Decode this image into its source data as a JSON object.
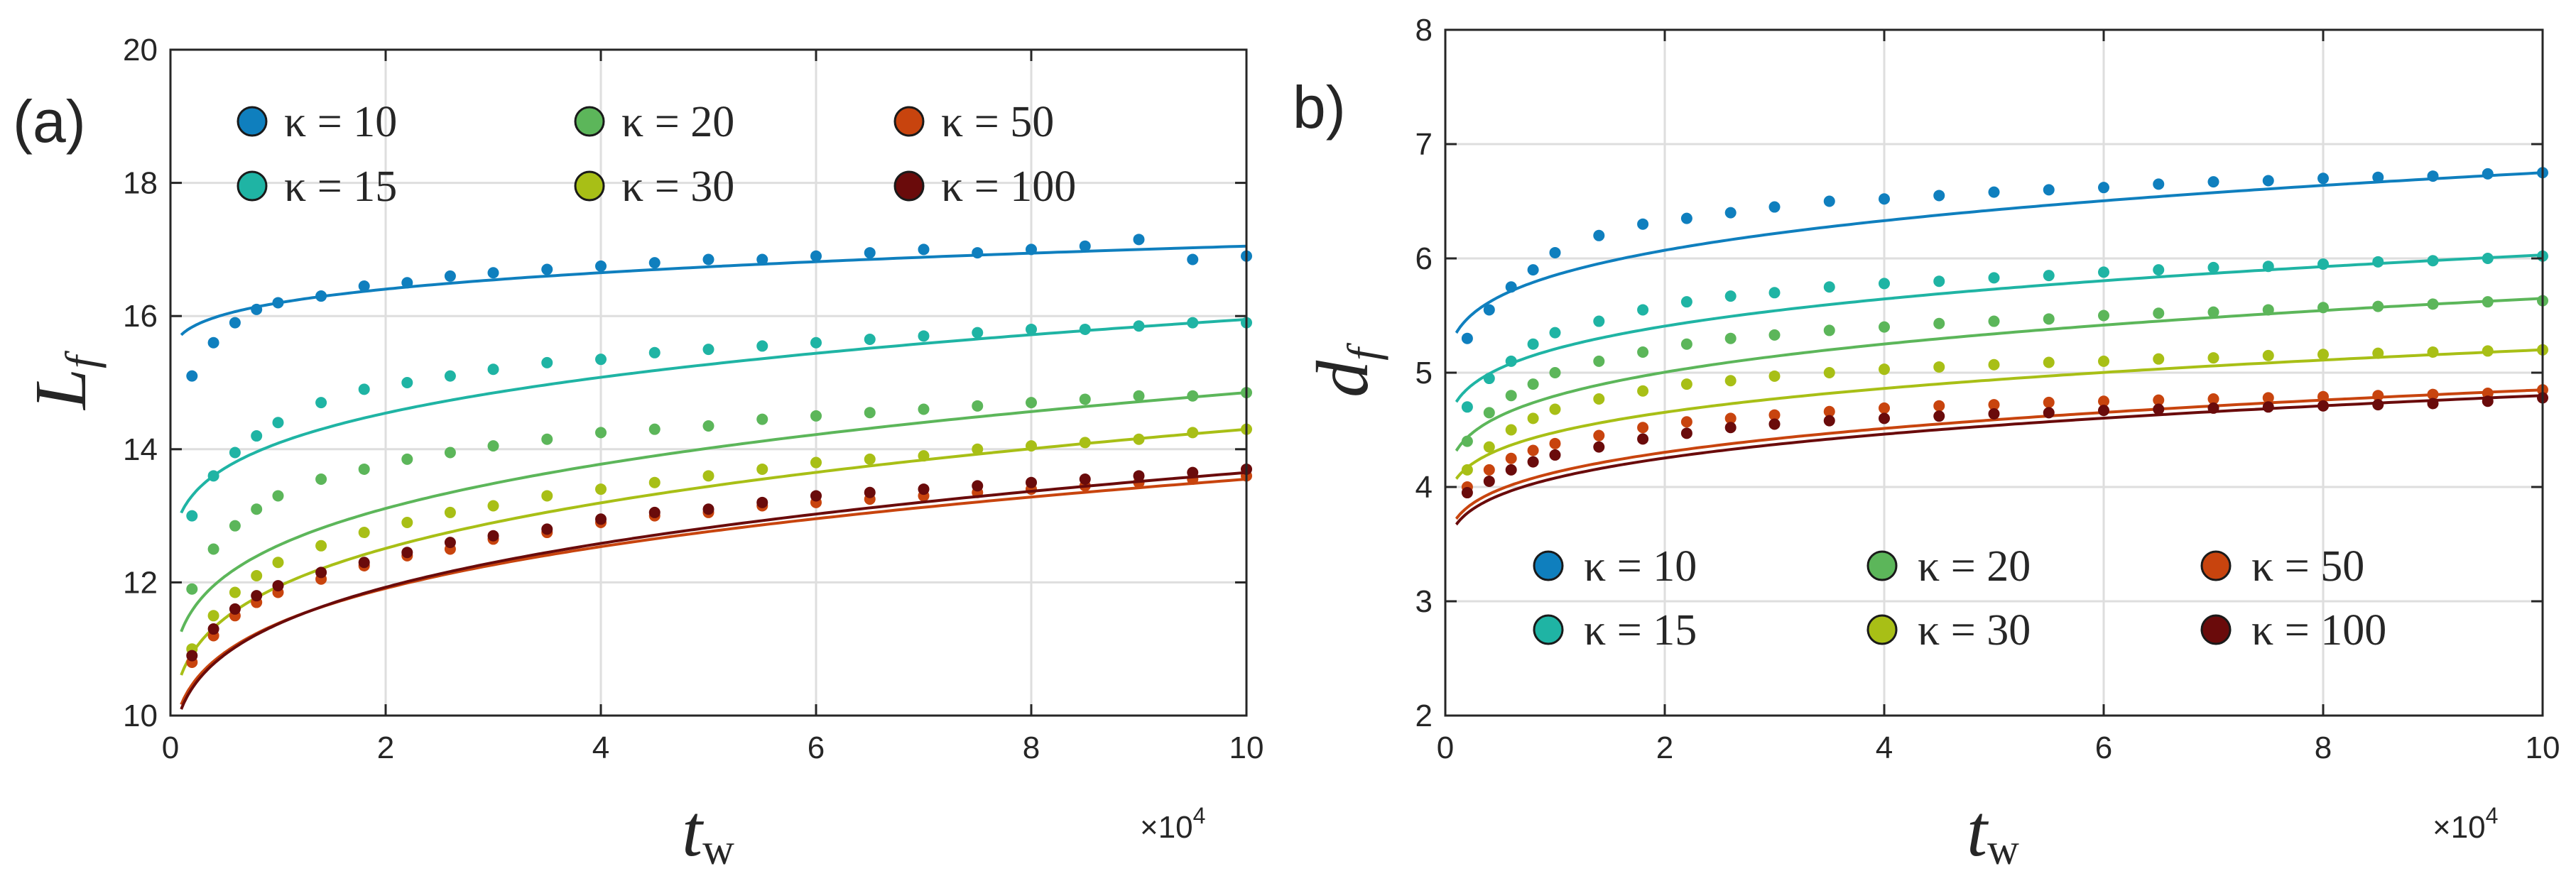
{
  "chart_data": [
    {
      "type": "scatter",
      "panel_label": "(a)",
      "xlabel": "t",
      "xlabel_sub": "w",
      "ylabel": "L",
      "ylabel_sub": "f",
      "x_exponent_prefix": "×10",
      "x_exponent_power": "4",
      "xlim": [
        0,
        100000
      ],
      "ylim": [
        10,
        20
      ],
      "xticks": [
        0,
        20000,
        40000,
        60000,
        80000,
        100000
      ],
      "xtick_labels": [
        "0",
        "2",
        "4",
        "6",
        "8",
        "10"
      ],
      "yticks": [
        10,
        12,
        14,
        16,
        18,
        20
      ],
      "ytick_labels": [
        "10",
        "12",
        "14",
        "16",
        "18",
        "20"
      ],
      "grid": true,
      "legend_placement": "top",
      "x": [
        2000,
        4000,
        6000,
        8000,
        10000,
        14000,
        18000,
        22000,
        26000,
        30000,
        35000,
        40000,
        45000,
        50000,
        55000,
        60000,
        65000,
        70000,
        75000,
        80000,
        85000,
        90000,
        95000,
        100000
      ],
      "series": [
        {
          "name": "κ = 10",
          "color": "#0f7fbe",
          "fit_base": 15.1,
          "fit_scale": 1.95,
          "values": [
            15.1,
            15.6,
            15.9,
            16.1,
            16.2,
            16.3,
            16.45,
            16.5,
            16.6,
            16.65,
            16.7,
            16.75,
            16.8,
            16.85,
            16.85,
            16.9,
            16.95,
            17.0,
            16.95,
            17.0,
            17.05,
            17.15,
            16.85,
            16.9
          ]
        },
        {
          "name": "κ = 15",
          "color": "#1fb4a4",
          "fit_base": 11.7,
          "fit_scale": 4.25,
          "values": [
            13.0,
            13.6,
            13.95,
            14.2,
            14.4,
            14.7,
            14.9,
            15.0,
            15.1,
            15.2,
            15.3,
            15.35,
            15.45,
            15.5,
            15.55,
            15.6,
            15.65,
            15.7,
            15.75,
            15.8,
            15.8,
            15.85,
            15.9,
            15.9
          ]
        },
        {
          "name": "κ = 20",
          "color": "#5cb65a",
          "fit_base": 9.6,
          "fit_scale": 5.25,
          "values": [
            11.9,
            12.5,
            12.85,
            13.1,
            13.3,
            13.55,
            13.7,
            13.85,
            13.95,
            14.05,
            14.15,
            14.25,
            14.3,
            14.35,
            14.45,
            14.5,
            14.55,
            14.6,
            14.65,
            14.7,
            14.75,
            14.8,
            14.8,
            14.85
          ]
        },
        {
          "name": "κ = 30",
          "color": "#a8bf16",
          "fit_base": 8.9,
          "fit_scale": 5.4,
          "values": [
            11.0,
            11.5,
            11.85,
            12.1,
            12.3,
            12.55,
            12.75,
            12.9,
            13.05,
            13.15,
            13.3,
            13.4,
            13.5,
            13.6,
            13.7,
            13.8,
            13.85,
            13.9,
            14.0,
            14.05,
            14.1,
            14.15,
            14.25,
            14.3
          ]
        },
        {
          "name": "κ = 50",
          "color": "#c8440e",
          "fit_base": 8.6,
          "fit_scale": 4.95,
          "values": [
            10.8,
            11.2,
            11.5,
            11.7,
            11.85,
            12.05,
            12.25,
            12.4,
            12.5,
            12.65,
            12.75,
            12.9,
            13.0,
            13.05,
            13.15,
            13.2,
            13.25,
            13.3,
            13.35,
            13.4,
            13.45,
            13.5,
            13.55,
            13.6
          ]
        },
        {
          "name": "κ = 100",
          "color": "#6a0b0b",
          "fit_base": 8.45,
          "fit_scale": 5.2,
          "values": [
            10.9,
            11.3,
            11.6,
            11.8,
            11.95,
            12.15,
            12.3,
            12.45,
            12.6,
            12.7,
            12.8,
            12.95,
            13.05,
            13.1,
            13.2,
            13.3,
            13.35,
            13.4,
            13.45,
            13.5,
            13.55,
            13.6,
            13.65,
            13.7
          ]
        }
      ]
    },
    {
      "type": "scatter",
      "panel_label": "b)",
      "xlabel": "t",
      "xlabel_sub": "w",
      "ylabel": "d",
      "ylabel_sub": "f",
      "x_exponent_prefix": "×10",
      "x_exponent_power": "4",
      "xlim": [
        0,
        100000
      ],
      "ylim": [
        2,
        8
      ],
      "xticks": [
        0,
        20000,
        40000,
        60000,
        80000,
        100000
      ],
      "xtick_labels": [
        "0",
        "2",
        "4",
        "6",
        "8",
        "10"
      ],
      "yticks": [
        2,
        3,
        4,
        5,
        6,
        7,
        8
      ],
      "ytick_labels": [
        "2",
        "3",
        "4",
        "5",
        "6",
        "7",
        "8"
      ],
      "grid": true,
      "legend_placement": "bottom",
      "x": [
        2000,
        4000,
        6000,
        8000,
        10000,
        14000,
        18000,
        22000,
        26000,
        30000,
        35000,
        40000,
        45000,
        50000,
        55000,
        60000,
        65000,
        70000,
        75000,
        80000,
        85000,
        90000,
        95000,
        100000
      ],
      "series": [
        {
          "name": "κ = 10",
          "color": "#0f7fbe",
          "fit_base": 4.7,
          "fit_scale": 2.05,
          "values": [
            5.3,
            5.55,
            5.75,
            5.9,
            6.05,
            6.2,
            6.3,
            6.35,
            6.4,
            6.45,
            6.5,
            6.52,
            6.55,
            6.58,
            6.6,
            6.62,
            6.65,
            6.67,
            6.68,
            6.7,
            6.71,
            6.72,
            6.74,
            6.75
          ]
        },
        {
          "name": "κ = 15",
          "color": "#1fb4a4",
          "fit_base": 4.15,
          "fit_scale": 1.88,
          "values": [
            4.7,
            4.95,
            5.1,
            5.25,
            5.35,
            5.45,
            5.55,
            5.62,
            5.67,
            5.7,
            5.75,
            5.78,
            5.8,
            5.83,
            5.85,
            5.88,
            5.9,
            5.92,
            5.93,
            5.95,
            5.97,
            5.98,
            6.0,
            6.02
          ]
        },
        {
          "name": "κ = 20",
          "color": "#5cb65a",
          "fit_base": 3.7,
          "fit_scale": 1.95,
          "values": [
            4.4,
            4.65,
            4.8,
            4.9,
            5.0,
            5.1,
            5.18,
            5.25,
            5.3,
            5.33,
            5.37,
            5.4,
            5.43,
            5.45,
            5.47,
            5.5,
            5.52,
            5.53,
            5.55,
            5.57,
            5.58,
            5.6,
            5.62,
            5.63
          ]
        },
        {
          "name": "κ = 30",
          "color": "#a8bf16",
          "fit_base": 3.55,
          "fit_scale": 1.65,
          "values": [
            4.15,
            4.35,
            4.5,
            4.6,
            4.68,
            4.77,
            4.84,
            4.9,
            4.93,
            4.97,
            5.0,
            5.03,
            5.05,
            5.07,
            5.09,
            5.1,
            5.12,
            5.13,
            5.15,
            5.16,
            5.17,
            5.18,
            5.19,
            5.2
          ]
        },
        {
          "name": "κ = 50",
          "color": "#c8440e",
          "fit_base": 3.2,
          "fit_scale": 1.65,
          "values": [
            4.0,
            4.15,
            4.25,
            4.32,
            4.38,
            4.45,
            4.52,
            4.57,
            4.6,
            4.63,
            4.66,
            4.69,
            4.71,
            4.72,
            4.74,
            4.75,
            4.76,
            4.77,
            4.78,
            4.79,
            4.8,
            4.81,
            4.82,
            4.85
          ]
        },
        {
          "name": "κ = 100",
          "color": "#6a0b0b",
          "fit_base": 3.15,
          "fit_scale": 1.65,
          "values": [
            3.95,
            4.05,
            4.15,
            4.22,
            4.28,
            4.35,
            4.42,
            4.47,
            4.52,
            4.55,
            4.58,
            4.6,
            4.62,
            4.64,
            4.65,
            4.67,
            4.68,
            4.69,
            4.7,
            4.71,
            4.72,
            4.73,
            4.75,
            4.78
          ]
        }
      ]
    }
  ]
}
